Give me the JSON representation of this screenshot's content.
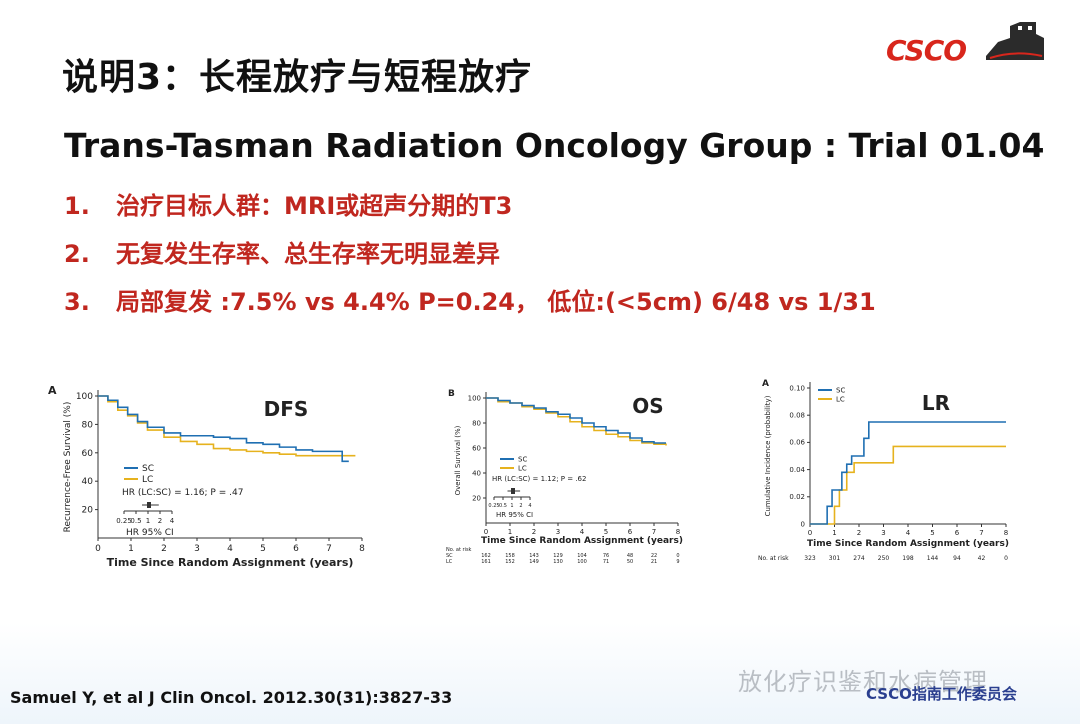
{
  "title": "说明3：长程放疗与短程放疗",
  "logo_text": "CSCO",
  "subtitle": "Trans-Tasman Radiation Oncology Group : Trial 01.04",
  "points": [
    {
      "num": "1.",
      "text": "治疗目标人群：MRI或超声分期的T3"
    },
    {
      "num": "2.",
      "text": "无复发生存率、总生存率无明显差异"
    },
    {
      "num": "3.",
      "text": "局部复发 :7.5% vs 4.4% P=0.24， 低位:(<5cm) 6/48 vs 1/31"
    }
  ],
  "citation": "Samuel Y, et al J Clin Oncol. 2012.30(31):3827-33",
  "watermark": "放化疗识鉴和水病管理",
  "committee": "CSCO指南工作委员会",
  "colors": {
    "SC": "#1f6fb2",
    "LC": "#e6b21e"
  },
  "chart_data": [
    {
      "type": "line",
      "panel": "A",
      "title": "DFS",
      "xlabel": "Time Since Random Assignment (years)",
      "ylabel": "Recurrence-Free Survival (%)",
      "xlim": [
        0,
        8
      ],
      "ylim": [
        0,
        100
      ],
      "xticks": [
        0,
        1,
        2,
        3,
        4,
        5,
        6,
        7,
        8
      ],
      "yticks": [
        20,
        40,
        60,
        80,
        100
      ],
      "legend": [
        "SC",
        "LC"
      ],
      "annotation": "HR (LC:SC) = 1.16; P = .47",
      "hr_ticks": [
        "0.25",
        "0.5",
        "1",
        "2",
        "4"
      ],
      "hr_label": "HR 95% CI",
      "series": [
        {
          "name": "SC",
          "x": [
            0,
            0.3,
            0.6,
            0.9,
            1.2,
            1.5,
            2,
            2.5,
            3,
            3.5,
            4,
            4.5,
            5,
            5.5,
            6,
            6.5,
            7,
            7.3,
            7.4,
            7.6
          ],
          "y": [
            100,
            97,
            92,
            87,
            82,
            78,
            74,
            72,
            72,
            71,
            70,
            67,
            66,
            64,
            62,
            61,
            61,
            61,
            54,
            54
          ]
        },
        {
          "name": "LC",
          "x": [
            0,
            0.3,
            0.6,
            0.9,
            1.2,
            1.5,
            2,
            2.5,
            3,
            3.5,
            4,
            4.5,
            5,
            5.5,
            6,
            6.5,
            7,
            7.5,
            7.8
          ],
          "y": [
            100,
            96,
            90,
            86,
            81,
            76,
            71,
            68,
            66,
            63,
            62,
            61,
            60,
            59,
            58,
            58,
            58,
            58,
            58
          ]
        }
      ]
    },
    {
      "type": "line",
      "panel": "B",
      "title": "OS",
      "xlabel": "Time Since Random Assignment (years)",
      "ylabel": "Overall Survival (%)",
      "xlim": [
        0,
        8
      ],
      "ylim": [
        0,
        100
      ],
      "xticks": [
        0,
        1,
        2,
        3,
        4,
        5,
        6,
        7,
        8
      ],
      "yticks": [
        20,
        40,
        60,
        80,
        100
      ],
      "legend": [
        "SC",
        "LC"
      ],
      "annotation": "HR (LC:SC) = 1.12; P = .62",
      "hr_ticks": [
        "0.25",
        "0.5",
        "1",
        "2",
        "4"
      ],
      "hr_label": "HR 95% CI",
      "risk_header": "No. at risk",
      "risk_table": [
        {
          "name": "SC",
          "values": [
            "162",
            "158",
            "143",
            "129",
            "104",
            "76",
            "48",
            "22",
            "0"
          ]
        },
        {
          "name": "LC",
          "values": [
            "161",
            "152",
            "149",
            "130",
            "100",
            "71",
            "50",
            "21",
            "9"
          ]
        }
      ],
      "series": [
        {
          "name": "SC",
          "x": [
            0,
            0.5,
            1,
            1.5,
            2,
            2.5,
            3,
            3.5,
            4,
            4.5,
            5,
            5.5,
            6,
            6.5,
            7,
            7.5
          ],
          "y": [
            100,
            98,
            96,
            94,
            92,
            89,
            87,
            84,
            80,
            77,
            74,
            72,
            68,
            65,
            64,
            64
          ]
        },
        {
          "name": "LC",
          "x": [
            0,
            0.5,
            1,
            1.5,
            2,
            2.5,
            3,
            3.5,
            4,
            4.5,
            5,
            5.5,
            6,
            6.5,
            7,
            7.5
          ],
          "y": [
            100,
            97,
            96,
            93,
            91,
            88,
            85,
            81,
            77,
            74,
            71,
            69,
            66,
            64,
            63,
            62
          ]
        }
      ]
    },
    {
      "type": "line",
      "panel": "A",
      "title": "LR",
      "xlabel": "Time Since Random Assignment (years)",
      "ylabel": "Cumulative Incidence (probability)",
      "xlim": [
        0,
        8
      ],
      "ylim": [
        0,
        0.1
      ],
      "xticks": [
        0,
        1,
        2,
        3,
        4,
        5,
        6,
        7,
        8
      ],
      "yticks": [
        0.02,
        0.04,
        0.06,
        0.08,
        0.1
      ],
      "legend": [
        "SC",
        "LC"
      ],
      "risk_header": "No. at risk",
      "risk_values": [
        "323",
        "301",
        "274",
        "250",
        "198",
        "144",
        "94",
        "42",
        "0"
      ],
      "series": [
        {
          "name": "SC",
          "x": [
            0,
            0.5,
            0.7,
            0.9,
            1.1,
            1.3,
            1.5,
            1.7,
            2.0,
            2.2,
            2.4,
            8
          ],
          "y": [
            0,
            0,
            0.013,
            0.025,
            0.025,
            0.038,
            0.044,
            0.05,
            0.05,
            0.063,
            0.075,
            0.075
          ]
        },
        {
          "name": "LC",
          "x": [
            0,
            0.8,
            1.0,
            1.2,
            1.5,
            1.8,
            3.4,
            8
          ],
          "y": [
            0,
            0,
            0.013,
            0.025,
            0.038,
            0.045,
            0.057,
            0.057
          ]
        }
      ]
    }
  ]
}
